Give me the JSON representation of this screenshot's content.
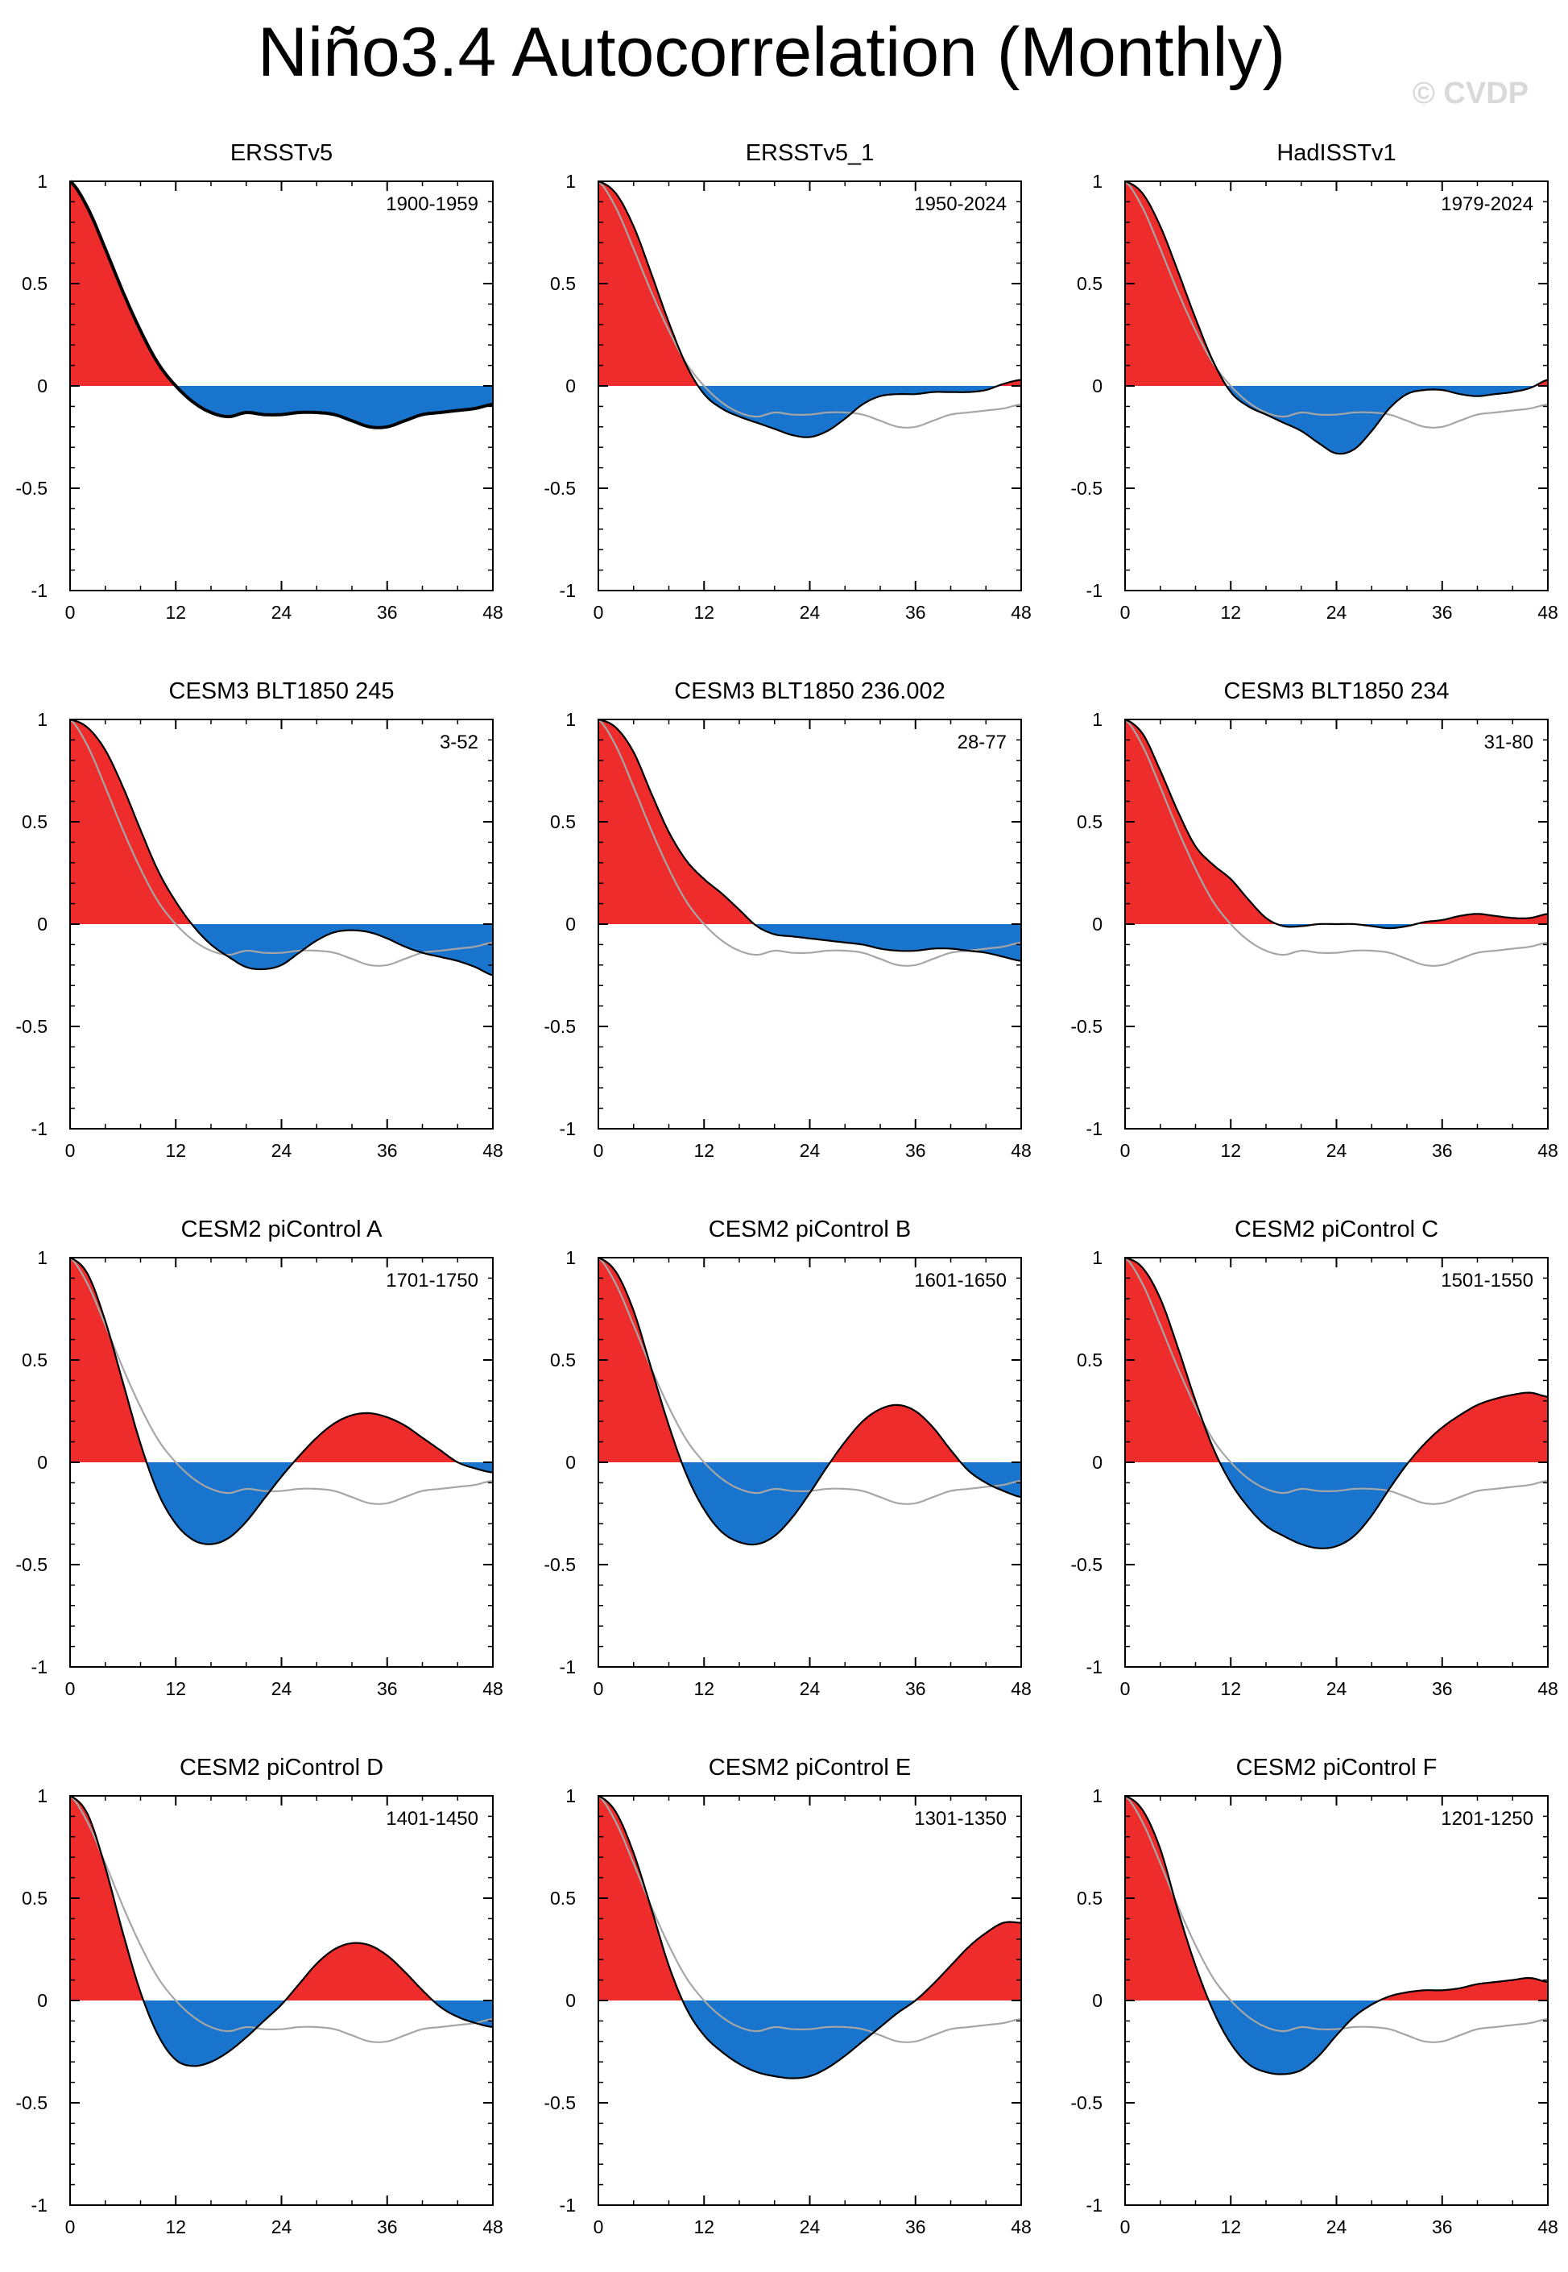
{
  "title": "Niño3.4 Autocorrelation (Monthly)",
  "watermark": "© CVDP",
  "colors": {
    "positive": "#ee2c2c",
    "negative": "#1874cd",
    "line": "#000000",
    "reference": "#a6a6a6"
  },
  "chart_data": [
    {
      "type": "area",
      "title": "ERSSTv5",
      "period": "1900-1959",
      "xlabel": "",
      "ylabel": "",
      "xticks": [
        0,
        12,
        24,
        36,
        48
      ],
      "yticks": [
        -1,
        -0.5,
        0,
        0.5,
        1
      ],
      "xlim": [
        0,
        48
      ],
      "ylim": [
        -1,
        1
      ],
      "lags": [
        0,
        2,
        4,
        6,
        8,
        10,
        12,
        14,
        16,
        18,
        20,
        22,
        24,
        26,
        28,
        30,
        32,
        34,
        36,
        38,
        40,
        42,
        44,
        46,
        48
      ],
      "values": [
        1.0,
        0.87,
        0.67,
        0.46,
        0.27,
        0.11,
        0.0,
        -0.08,
        -0.13,
        -0.15,
        -0.13,
        -0.14,
        -0.14,
        -0.13,
        -0.13,
        -0.14,
        -0.17,
        -0.2,
        -0.2,
        -0.17,
        -0.14,
        -0.13,
        -0.12,
        -0.11,
        -0.09
      ]
    },
    {
      "type": "area",
      "title": "ERSSTv5_1",
      "period": "1950-2024",
      "xlabel": "",
      "ylabel": "",
      "xticks": [
        0,
        12,
        24,
        36,
        48
      ],
      "yticks": [
        -1,
        -0.5,
        0,
        0.5,
        1
      ],
      "xlim": [
        0,
        48
      ],
      "ylim": [
        -1,
        1
      ],
      "lags": [
        0,
        2,
        4,
        6,
        8,
        10,
        12,
        14,
        16,
        18,
        20,
        22,
        24,
        26,
        28,
        30,
        32,
        34,
        36,
        38,
        40,
        42,
        44,
        46,
        48
      ],
      "values": [
        1.0,
        0.94,
        0.78,
        0.55,
        0.31,
        0.1,
        -0.04,
        -0.11,
        -0.15,
        -0.18,
        -0.21,
        -0.24,
        -0.25,
        -0.22,
        -0.16,
        -0.09,
        -0.05,
        -0.04,
        -0.04,
        -0.03,
        -0.03,
        -0.03,
        -0.02,
        0.01,
        0.03
      ]
    },
    {
      "type": "area",
      "title": "HadISSTv1",
      "period": "1979-2024",
      "xlabel": "",
      "ylabel": "",
      "xticks": [
        0,
        12,
        24,
        36,
        48
      ],
      "yticks": [
        -1,
        -0.5,
        0,
        0.5,
        1
      ],
      "xlim": [
        0,
        48
      ],
      "ylim": [
        -1,
        1
      ],
      "lags": [
        0,
        2,
        4,
        6,
        8,
        10,
        12,
        14,
        16,
        18,
        20,
        22,
        24,
        26,
        28,
        30,
        32,
        34,
        36,
        38,
        40,
        42,
        44,
        46,
        48
      ],
      "values": [
        1.0,
        0.94,
        0.78,
        0.56,
        0.33,
        0.12,
        -0.03,
        -0.1,
        -0.14,
        -0.18,
        -0.22,
        -0.28,
        -0.33,
        -0.31,
        -0.22,
        -0.11,
        -0.04,
        -0.02,
        -0.02,
        -0.04,
        -0.05,
        -0.04,
        -0.03,
        -0.01,
        0.03
      ]
    },
    {
      "type": "area",
      "title": "CESM3 BLT1850 245",
      "period": "3-52",
      "xlabel": "",
      "ylabel": "",
      "xticks": [
        0,
        12,
        24,
        36,
        48
      ],
      "yticks": [
        -1,
        -0.5,
        0,
        0.5,
        1
      ],
      "xlim": [
        0,
        48
      ],
      "ylim": [
        -1,
        1
      ],
      "lags": [
        0,
        2,
        4,
        6,
        8,
        10,
        12,
        14,
        16,
        18,
        20,
        22,
        24,
        26,
        28,
        30,
        32,
        34,
        36,
        38,
        40,
        42,
        44,
        46,
        48
      ],
      "values": [
        1.0,
        0.96,
        0.85,
        0.67,
        0.46,
        0.26,
        0.11,
        -0.01,
        -0.1,
        -0.16,
        -0.21,
        -0.22,
        -0.2,
        -0.14,
        -0.08,
        -0.04,
        -0.03,
        -0.04,
        -0.07,
        -0.11,
        -0.14,
        -0.16,
        -0.18,
        -0.21,
        -0.25
      ]
    },
    {
      "type": "area",
      "title": "CESM3 BLT1850 236.002",
      "period": "28-77",
      "xlabel": "",
      "ylabel": "",
      "xticks": [
        0,
        12,
        24,
        36,
        48
      ],
      "yticks": [
        -1,
        -0.5,
        0,
        0.5,
        1
      ],
      "xlim": [
        0,
        48
      ],
      "ylim": [
        -1,
        1
      ],
      "lags": [
        0,
        2,
        4,
        6,
        8,
        10,
        12,
        14,
        16,
        18,
        20,
        22,
        24,
        26,
        28,
        30,
        32,
        34,
        36,
        38,
        40,
        42,
        44,
        46,
        48
      ],
      "values": [
        1.0,
        0.96,
        0.84,
        0.64,
        0.45,
        0.31,
        0.22,
        0.15,
        0.07,
        -0.01,
        -0.05,
        -0.06,
        -0.07,
        -0.08,
        -0.09,
        -0.1,
        -0.12,
        -0.13,
        -0.13,
        -0.12,
        -0.12,
        -0.13,
        -0.14,
        -0.16,
        -0.18
      ]
    },
    {
      "type": "area",
      "title": "CESM3 BLT1850 234",
      "period": "31-80",
      "xlabel": "",
      "ylabel": "",
      "xticks": [
        0,
        12,
        24,
        36,
        48
      ],
      "yticks": [
        -1,
        -0.5,
        0,
        0.5,
        1
      ],
      "xlim": [
        0,
        48
      ],
      "ylim": [
        -1,
        1
      ],
      "lags": [
        0,
        2,
        4,
        6,
        8,
        10,
        12,
        14,
        16,
        18,
        20,
        22,
        24,
        26,
        28,
        30,
        32,
        34,
        36,
        38,
        40,
        42,
        44,
        46,
        48
      ],
      "values": [
        1.0,
        0.93,
        0.75,
        0.55,
        0.38,
        0.29,
        0.22,
        0.12,
        0.03,
        -0.01,
        -0.01,
        0.0,
        0.0,
        0.0,
        -0.01,
        -0.02,
        -0.01,
        0.01,
        0.02,
        0.04,
        0.05,
        0.04,
        0.03,
        0.03,
        0.05
      ]
    },
    {
      "type": "area",
      "title": "CESM2 piControl A",
      "period": "1701-1750",
      "xlabel": "",
      "ylabel": "",
      "xticks": [
        0,
        12,
        24,
        36,
        48
      ],
      "yticks": [
        -1,
        -0.5,
        0,
        0.5,
        1
      ],
      "xlim": [
        0,
        48
      ],
      "ylim": [
        -1,
        1
      ],
      "lags": [
        0,
        2,
        4,
        6,
        8,
        10,
        12,
        14,
        16,
        18,
        20,
        22,
        24,
        26,
        28,
        30,
        32,
        34,
        36,
        38,
        40,
        42,
        44,
        46,
        48
      ],
      "values": [
        1.0,
        0.92,
        0.69,
        0.39,
        0.09,
        -0.15,
        -0.3,
        -0.38,
        -0.4,
        -0.37,
        -0.29,
        -0.18,
        -0.07,
        0.03,
        0.12,
        0.19,
        0.23,
        0.24,
        0.22,
        0.18,
        0.12,
        0.06,
        0.0,
        -0.03,
        -0.05
      ]
    },
    {
      "type": "area",
      "title": "CESM2 piControl B",
      "period": "1601-1650",
      "xlabel": "",
      "ylabel": "",
      "xticks": [
        0,
        12,
        24,
        36,
        48
      ],
      "yticks": [
        -1,
        -0.5,
        0,
        0.5,
        1
      ],
      "xlim": [
        0,
        48
      ],
      "ylim": [
        -1,
        1
      ],
      "lags": [
        0,
        2,
        4,
        6,
        8,
        10,
        12,
        14,
        16,
        18,
        20,
        22,
        24,
        26,
        28,
        30,
        32,
        34,
        36,
        38,
        40,
        42,
        44,
        46,
        48
      ],
      "values": [
        1.0,
        0.93,
        0.74,
        0.46,
        0.18,
        -0.06,
        -0.23,
        -0.34,
        -0.39,
        -0.4,
        -0.36,
        -0.27,
        -0.15,
        -0.02,
        0.1,
        0.2,
        0.26,
        0.28,
        0.25,
        0.17,
        0.06,
        -0.04,
        -0.1,
        -0.14,
        -0.17
      ]
    },
    {
      "type": "area",
      "title": "CESM2 piControl C",
      "period": "1501-1550",
      "xlabel": "",
      "ylabel": "",
      "xticks": [
        0,
        12,
        24,
        36,
        48
      ],
      "yticks": [
        -1,
        -0.5,
        0,
        0.5,
        1
      ],
      "xlim": [
        0,
        48
      ],
      "ylim": [
        -1,
        1
      ],
      "lags": [
        0,
        2,
        4,
        6,
        8,
        10,
        12,
        14,
        16,
        18,
        20,
        22,
        24,
        26,
        28,
        30,
        32,
        34,
        36,
        38,
        40,
        42,
        44,
        46,
        48
      ],
      "values": [
        1.0,
        0.95,
        0.8,
        0.56,
        0.3,
        0.07,
        -0.1,
        -0.22,
        -0.31,
        -0.36,
        -0.4,
        -0.42,
        -0.41,
        -0.36,
        -0.26,
        -0.13,
        -0.01,
        0.09,
        0.17,
        0.23,
        0.28,
        0.31,
        0.33,
        0.34,
        0.32
      ]
    },
    {
      "type": "area",
      "title": "CESM2 piControl D",
      "period": "1401-1450",
      "xlabel": "",
      "ylabel": "",
      "xticks": [
        0,
        12,
        24,
        36,
        48
      ],
      "yticks": [
        -1,
        -0.5,
        0,
        0.5,
        1
      ],
      "xlim": [
        0,
        48
      ],
      "ylim": [
        -1,
        1
      ],
      "lags": [
        0,
        2,
        4,
        6,
        8,
        10,
        12,
        14,
        16,
        18,
        20,
        22,
        24,
        26,
        28,
        30,
        32,
        34,
        36,
        38,
        40,
        42,
        44,
        46,
        48
      ],
      "values": [
        1.0,
        0.91,
        0.65,
        0.33,
        0.04,
        -0.17,
        -0.29,
        -0.32,
        -0.3,
        -0.25,
        -0.18,
        -0.1,
        -0.02,
        0.08,
        0.18,
        0.25,
        0.28,
        0.27,
        0.22,
        0.14,
        0.05,
        -0.03,
        -0.08,
        -0.11,
        -0.13
      ]
    },
    {
      "type": "area",
      "title": "CESM2 piControl E",
      "period": "1301-1350",
      "xlabel": "",
      "ylabel": "",
      "xticks": [
        0,
        12,
        24,
        36,
        48
      ],
      "yticks": [
        -1,
        -0.5,
        0,
        0.5,
        1
      ],
      "xlim": [
        0,
        48
      ],
      "ylim": [
        -1,
        1
      ],
      "lags": [
        0,
        2,
        4,
        6,
        8,
        10,
        12,
        14,
        16,
        18,
        20,
        22,
        24,
        26,
        28,
        30,
        32,
        34,
        36,
        38,
        40,
        42,
        44,
        46,
        48
      ],
      "values": [
        1.0,
        0.92,
        0.72,
        0.45,
        0.17,
        -0.04,
        -0.17,
        -0.25,
        -0.31,
        -0.35,
        -0.37,
        -0.38,
        -0.37,
        -0.33,
        -0.27,
        -0.2,
        -0.13,
        -0.06,
        0.0,
        0.08,
        0.17,
        0.26,
        0.33,
        0.38,
        0.38
      ]
    },
    {
      "type": "area",
      "title": "CESM2 piControl F",
      "period": "1201-1250",
      "xlabel": "",
      "ylabel": "",
      "xticks": [
        0,
        12,
        24,
        36,
        48
      ],
      "yticks": [
        -1,
        -0.5,
        0,
        0.5,
        1
      ],
      "xlim": [
        0,
        48
      ],
      "ylim": [
        -1,
        1
      ],
      "lags": [
        0,
        2,
        4,
        6,
        8,
        10,
        12,
        14,
        16,
        18,
        20,
        22,
        24,
        26,
        28,
        30,
        32,
        34,
        36,
        38,
        40,
        42,
        44,
        46,
        48
      ],
      "values": [
        1.0,
        0.93,
        0.74,
        0.44,
        0.17,
        -0.05,
        -0.21,
        -0.31,
        -0.35,
        -0.36,
        -0.34,
        -0.27,
        -0.17,
        -0.08,
        -0.02,
        0.02,
        0.04,
        0.05,
        0.05,
        0.06,
        0.08,
        0.09,
        0.1,
        0.11,
        0.09
      ]
    }
  ]
}
